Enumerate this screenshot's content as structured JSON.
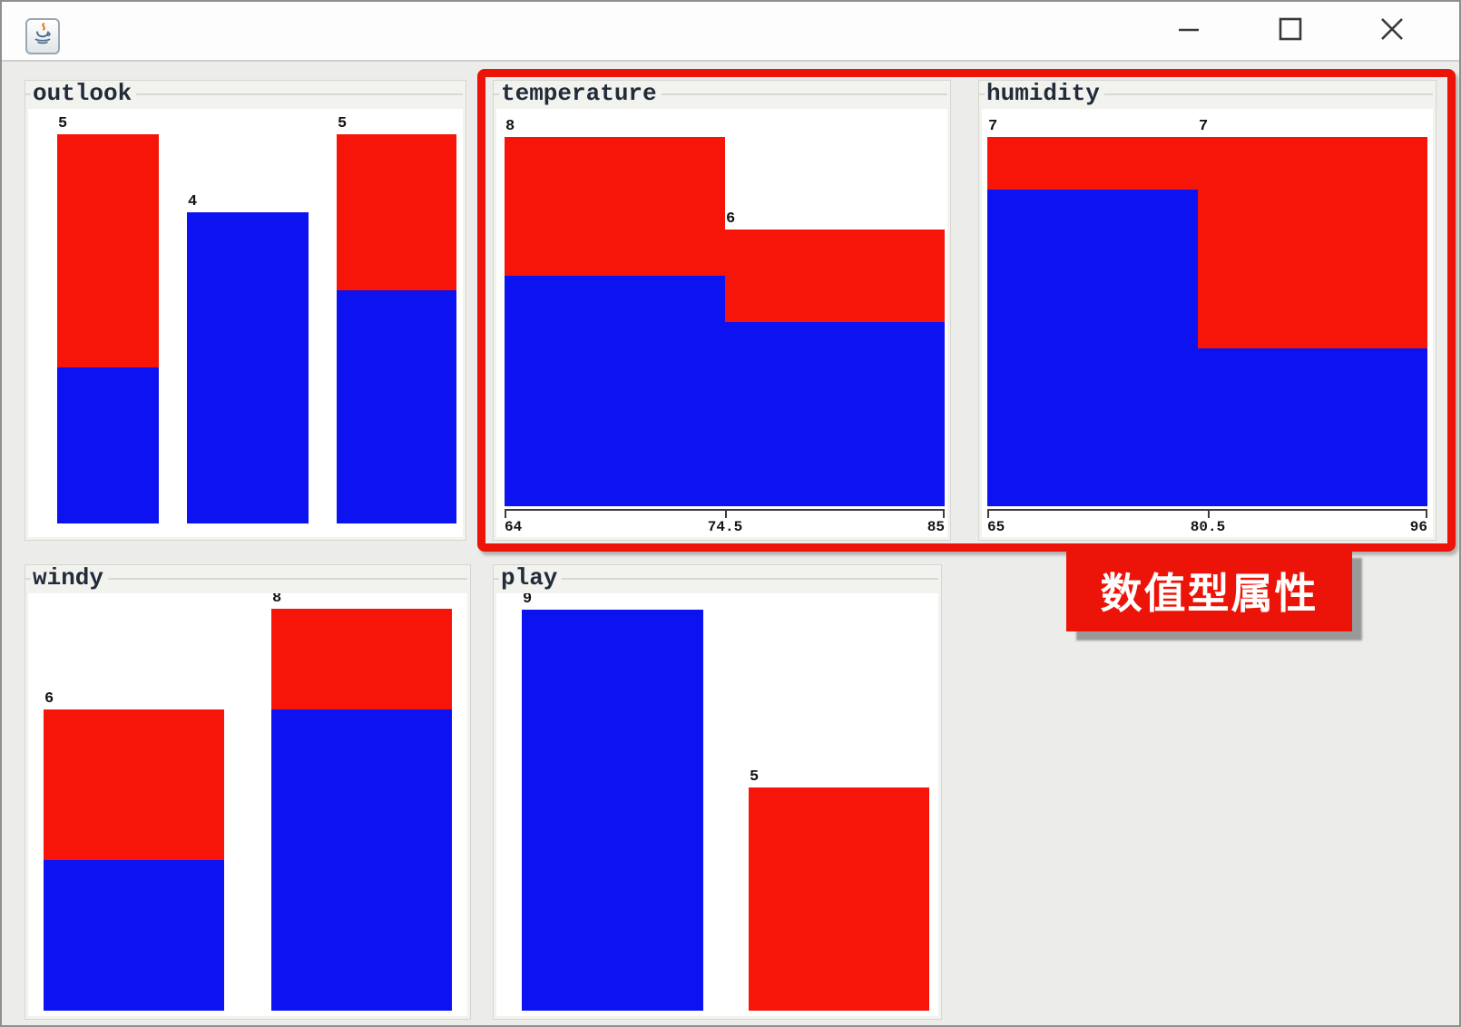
{
  "window": {
    "title": "",
    "icons": {
      "app": "java-coffee-cup-icon",
      "minimize": "minimize-icon",
      "maximize": "maximize-icon",
      "close": "close-icon"
    }
  },
  "colors": {
    "class_red": "#f7150a",
    "class_blue": "#0d12f0",
    "highlight_red": "#ec1408",
    "axis": "#3d3d3d"
  },
  "annotation": {
    "label": "数值型属性"
  },
  "chart_data": [
    {
      "type": "bar",
      "title": "outlook",
      "stacked": true,
      "y_max": 5,
      "bars": [
        {
          "count_label": "5",
          "total": 5,
          "red": 3,
          "blue": 2
        },
        {
          "count_label": "4",
          "total": 4,
          "red": 0,
          "blue": 4
        },
        {
          "count_label": "5",
          "total": 5,
          "red": 2,
          "blue": 3
        }
      ],
      "axis": null
    },
    {
      "type": "bar",
      "title": "temperature",
      "stacked": true,
      "histogram": true,
      "y_max": 8,
      "bars": [
        {
          "count_label": "8",
          "total": 8,
          "red": 3,
          "blue": 5
        },
        {
          "count_label": "6",
          "total": 6,
          "red": 2,
          "blue": 4
        }
      ],
      "axis": {
        "min_label": "64",
        "mid_label": "74.5",
        "max_label": "85"
      }
    },
    {
      "type": "bar",
      "title": "humidity",
      "stacked": true,
      "histogram": true,
      "y_max": 7,
      "bars": [
        {
          "count_label": "7",
          "total": 7,
          "red": 1,
          "blue": 6
        },
        {
          "count_label": "7",
          "total": 7,
          "red": 4,
          "blue": 3
        }
      ],
      "axis": {
        "min_label": "65",
        "mid_label": "80.5",
        "max_label": "96"
      }
    },
    {
      "type": "bar",
      "title": "windy",
      "stacked": true,
      "y_max": 8,
      "bars": [
        {
          "count_label": "6",
          "total": 6,
          "red": 3,
          "blue": 3
        },
        {
          "count_label": "8",
          "total": 8,
          "red": 2,
          "blue": 6
        }
      ],
      "axis": null
    },
    {
      "type": "bar",
      "title": "play",
      "stacked": true,
      "y_max": 9,
      "bars": [
        {
          "count_label": "9",
          "total": 9,
          "red": 0,
          "blue": 9
        },
        {
          "count_label": "5",
          "total": 5,
          "red": 5,
          "blue": 0
        }
      ],
      "axis": null
    }
  ]
}
